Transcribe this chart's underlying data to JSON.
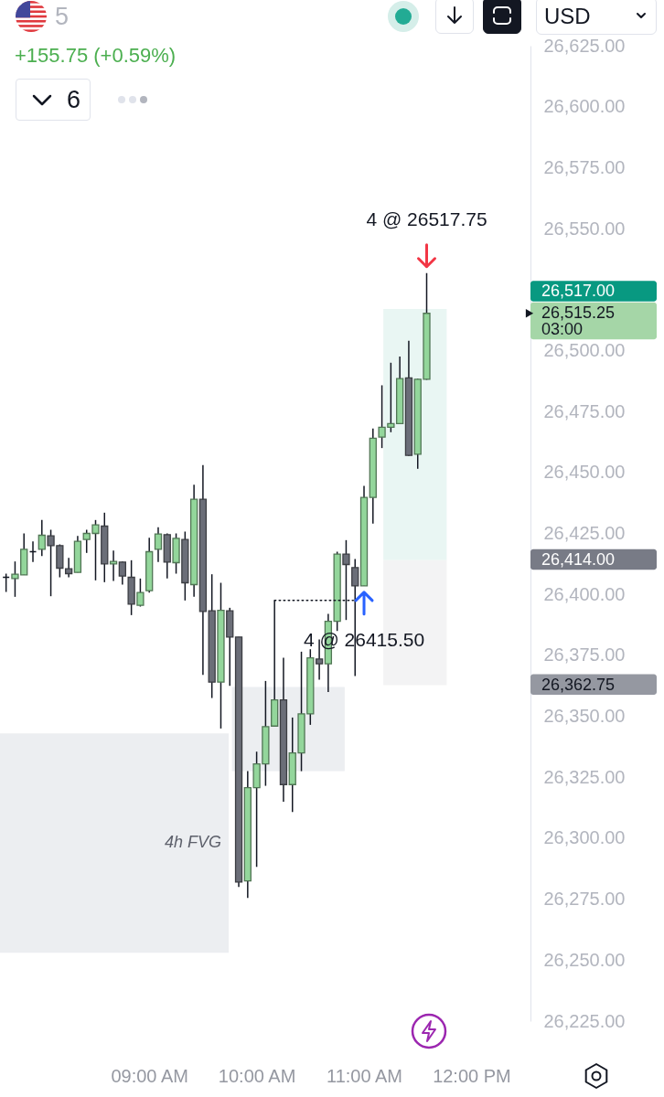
{
  "chart_data": {
    "type": "candlestick",
    "title": "5",
    "subtitle": "+155.75 (+0.59%)",
    "x": [
      7.6667,
      7.75,
      7.8333,
      7.9167,
      8,
      8.0833,
      8.1667,
      8.25,
      8.3333,
      8.4167,
      8.5,
      8.5833,
      8.6667,
      8.75,
      8.8333,
      8.9167,
      9,
      9.0833,
      9.1667,
      9.25,
      9.3333,
      9.4167,
      9.5,
      9.5833,
      9.6667,
      9.75,
      9.8333,
      9.9167,
      10,
      10.0833,
      10.1667,
      10.25,
      10.3333,
      10.4167,
      10.5,
      10.5833,
      10.6667,
      10.75,
      10.8333,
      10.9167,
      11,
      11.0833,
      11.1667,
      11.25,
      11.3333,
      11.4167,
      11.5,
      11.5833
    ],
    "ohlc": [
      [
        26407,
        26408.5,
        26401,
        26407
      ],
      [
        26406.5,
        26413.5,
        26399,
        26408.25
      ],
      [
        26408,
        26425,
        26408,
        26418.5
      ],
      [
        26417.5,
        26421.75,
        26413.25,
        26417.5
      ],
      [
        26418.5,
        26430.5,
        26415.75,
        26424.25
      ],
      [
        26424,
        26426.5,
        26399.25,
        26420
      ],
      [
        26420,
        26420.5,
        26407,
        26410.75
      ],
      [
        26410.5,
        26415,
        26407,
        26408.5
      ],
      [
        26409,
        26424,
        26409,
        26421.75
      ],
      [
        26422.5,
        26426.5,
        26417,
        26425
      ],
      [
        26425,
        26430.5,
        26405.75,
        26428.5
      ],
      [
        26428,
        26433.5,
        26405,
        26412.5
      ],
      [
        26412.5,
        26418,
        26405.5,
        26413.5
      ],
      [
        26413.25,
        26413.5,
        26404,
        26407.5
      ],
      [
        26407,
        26414,
        26391.5,
        26396
      ],
      [
        26395.5,
        26406.5,
        26395,
        26400.75
      ],
      [
        26401.5,
        26423.25,
        26400.75,
        26417.5
      ],
      [
        26418.5,
        26427.5,
        26413.25,
        26424.75
      ],
      [
        26424.5,
        26425,
        26406.5,
        26413.25
      ],
      [
        26413,
        26425,
        26408.5,
        26423
      ],
      [
        26422.5,
        26425.75,
        26397.5,
        26404.75
      ],
      [
        26404,
        26445,
        26399,
        26439
      ],
      [
        26439,
        26453,
        26367,
        26393
      ],
      [
        26393.25,
        26408.25,
        26357.5,
        26364
      ],
      [
        26364,
        26404.75,
        26345,
        26393.5
      ],
      [
        26393.25,
        26394.5,
        26362.5,
        26382.5
      ],
      [
        26382.5,
        26382.5,
        26280,
        26282
      ],
      [
        26282.5,
        26327.5,
        26275.5,
        26320.75
      ],
      [
        26320.75,
        26335.5,
        26288.25,
        26330.5
      ],
      [
        26330.5,
        26364.5,
        26321.5,
        26345.75
      ],
      [
        26346,
        26397.5,
        26346,
        26356.75
      ],
      [
        26356.75,
        26374,
        26315,
        26322
      ],
      [
        26322,
        26349.5,
        26310.75,
        26335
      ],
      [
        26335,
        26376.5,
        26327.5,
        26351
      ],
      [
        26351,
        26377.5,
        26346.5,
        26374
      ],
      [
        26373.5,
        26381.5,
        26365,
        26371.5
      ],
      [
        26371.5,
        26392,
        26360,
        26389
      ],
      [
        26389,
        26417.5,
        26385,
        26416.5
      ],
      [
        26416.5,
        26422.25,
        26389.5,
        26412.25
      ],
      [
        26411,
        26414.5,
        26366.5,
        26403.5
      ],
      [
        26403.5,
        26444.5,
        26403.5,
        26439.75
      ],
      [
        26439.75,
        26468,
        26429,
        26464
      ],
      [
        26464.5,
        26485.75,
        26460,
        26468.5
      ],
      [
        26468.5,
        26495,
        26466.5,
        26470
      ],
      [
        26470,
        26497.5,
        26470,
        26488.5
      ],
      [
        26488.75,
        26504,
        26456.75,
        26457
      ],
      [
        26457.5,
        26488.5,
        26451.5,
        26488.25
      ],
      [
        26488.25,
        26531.75,
        26488,
        26515.25
      ]
    ],
    "colors": [
      "#131722",
      "#93d69b",
      "#93d69b",
      "#131722",
      "#93d69b",
      "#6b6e78",
      "#6b6e78",
      "#6b6e78",
      "#93d69b",
      "#93d69b",
      "#93d69b",
      "#6b6e78",
      "#93d69b",
      "#6b6e78",
      "#6b6e78",
      "#93d69b",
      "#93d69b",
      "#93d69b",
      "#6b6e78",
      "#93d69b",
      "#6b6e78",
      "#93d69b",
      "#6b6e78",
      "#6b6e78",
      "#93d69b",
      "#6b6e78",
      "#6b6e78",
      "#93d69b",
      "#93d69b",
      "#93d69b",
      "#93d69b",
      "#6b6e78",
      "#93d69b",
      "#93d69b",
      "#93d69b",
      "#6b6e78",
      "#93d69b",
      "#93d69b",
      "#6b6e78",
      "#6b6e78",
      "#93d69b",
      "#93d69b",
      "#93d69b",
      "#93d69b",
      "#93d69b",
      "#6b6e78",
      "#93d69b",
      "#93d69b"
    ],
    "xlim": [
      7.61,
      12.55
    ],
    "xticks": [
      {
        "value": 9,
        "label": "09:00 AM"
      },
      {
        "value": 10,
        "label": "10:00 AM"
      },
      {
        "value": 11,
        "label": "11:00 AM"
      },
      {
        "value": 12,
        "label": "12:00 PM"
      }
    ],
    "ylim": [
      26225,
      26625
    ],
    "yticks": [
      {
        "value": 26225,
        "label": "26,225.00"
      },
      {
        "value": 26250,
        "label": "26,250.00"
      },
      {
        "value": 26275,
        "label": "26,275.00"
      },
      {
        "value": 26300,
        "label": "26,300.00"
      },
      {
        "value": 26325,
        "label": "26,325.00"
      },
      {
        "value": 26350,
        "label": "26,350.00"
      },
      {
        "value": 26375,
        "label": "26,375.00"
      },
      {
        "value": 26400,
        "label": "26,400.00"
      },
      {
        "value": 26425,
        "label": "26,425.00"
      },
      {
        "value": 26450,
        "label": "26,450.00"
      },
      {
        "value": 26475,
        "label": "26,475.00"
      },
      {
        "value": 26500,
        "label": "26,500.00"
      },
      {
        "value": 26550,
        "label": "26,550.00"
      },
      {
        "value": 26575,
        "label": "26,575.00"
      },
      {
        "value": 26600,
        "label": "26,600.00"
      },
      {
        "value": 26625,
        "label": "26,625.00"
      }
    ],
    "series": [
      {
        "type": "line",
        "x": [
          7.61,
          9.74
        ],
        "values": [
          null,
          null
        ],
        "lower": [
          26253,
          26253
        ],
        "upper": [
          26343,
          26343
        ],
        "color": "#eceef1"
      },
      {
        "type": "line",
        "x": [
          9.77,
          10.82
        ],
        "values": [
          null,
          null
        ],
        "lower": [
          26327.5,
          26327.5
        ],
        "upper": [
          26362,
          26362
        ],
        "color": "#eceef1"
      },
      {
        "type": "line",
        "x": [
          11.18,
          11.77
        ],
        "values": [
          null,
          null
        ],
        "lower": [
          26414,
          26414
        ],
        "upper": [
          26517,
          26517
        ],
        "color": "#e9f6f3"
      },
      {
        "type": "line",
        "x": [
          11.18,
          11.77
        ],
        "values": [
          null,
          null
        ],
        "lower": [
          26362.75,
          26362.75
        ],
        "upper": [
          26414,
          26414
        ],
        "color": "#f3f3f4"
      },
      {
        "type": "line",
        "x": [
          10.1667,
          10.9
        ],
        "values": [
          26397.5,
          26397.5
        ],
        "color": "#131722",
        "line_style": "dotted"
      }
    ],
    "annotations": [
      "6",
      "USD",
      {
        "text": "4 @ 26517.75",
        "x": 11.5833,
        "y": 26531.75
      },
      {
        "text": "4 @ 26415.50",
        "x": 11,
        "y": 26403.5
      },
      "4h FVG",
      "26,517.00",
      "26,515.25",
      "03:00",
      "26,414.00",
      "26,362.75"
    ]
  }
}
